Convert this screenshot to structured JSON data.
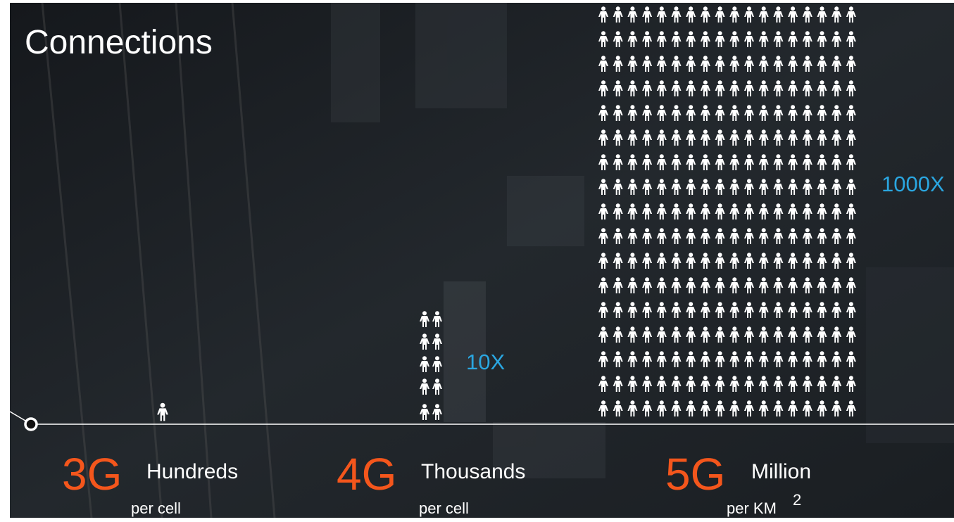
{
  "title": "Connections",
  "generations": [
    {
      "name": "3G",
      "label": "Hundreds",
      "unit": "per cell"
    },
    {
      "name": "4G",
      "label": "Thousands",
      "unit": "per cell"
    },
    {
      "name": "5G",
      "label": "Million",
      "unit": "per KM",
      "unit_sup": "2"
    }
  ],
  "multipliers": [
    "10X",
    "1000X"
  ]
}
